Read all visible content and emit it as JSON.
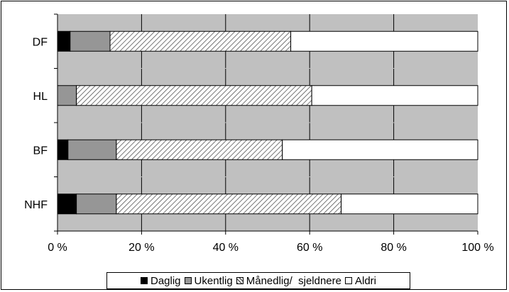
{
  "chart_data": {
    "type": "bar",
    "orientation": "horizontal",
    "stacked": "percent",
    "categories": [
      "DF",
      "HL",
      "BF",
      "NHF"
    ],
    "series": [
      {
        "name": "Daglig",
        "values": [
          3,
          0,
          2.5,
          4.5
        ],
        "color": "#000000",
        "pattern": "solid"
      },
      {
        "name": "Ukentlig",
        "values": [
          9.5,
          4.5,
          11.5,
          9.5
        ],
        "color": "#969696",
        "pattern": "solid"
      },
      {
        "name": "Månedlig/  sjeldnere",
        "values": [
          43,
          56,
          39.5,
          53.5
        ],
        "color": "#ffffff",
        "pattern": "diagonal-hatch"
      },
      {
        "name": "Aldri",
        "values": [
          44.5,
          39.5,
          46.5,
          32.5
        ],
        "color": "#ffffff",
        "pattern": "solid"
      }
    ],
    "x_ticks": [
      "0 %",
      "20 %",
      "40 %",
      "60 %",
      "80 %",
      "100 %"
    ],
    "xlim": [
      0,
      100
    ],
    "title": "",
    "xlabel": "",
    "ylabel": "",
    "grid": true,
    "plot_background": "#c0c0c0",
    "legend_position": "bottom"
  }
}
